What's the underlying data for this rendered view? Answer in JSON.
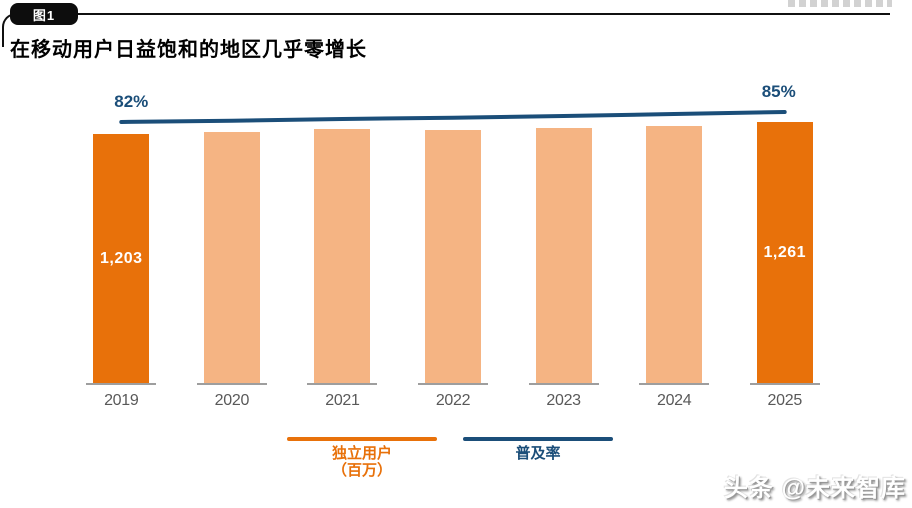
{
  "header": {
    "badge": "图1",
    "title": "在移动用户日益饱和的地区几乎零增长"
  },
  "watermark": "头条 @未来智库",
  "colors": {
    "bar_highlight": "#E8710A",
    "bar_normal": "#F5B483",
    "line": "#1B4E79",
    "bar_value_text": "#FFFFFF",
    "axis_text": "#595959",
    "axis_line": "#9E9E9E",
    "title_text": "#000000",
    "badge_bg": "#0D0D0D"
  },
  "chart_data": {
    "type": "bar",
    "title": "在移动用户日益饱和的地区几乎零增长",
    "categories": [
      "2019",
      "2020",
      "2021",
      "2022",
      "2023",
      "2024",
      "2025"
    ],
    "series": [
      {
        "name": "独立用户（百万）",
        "type": "bar",
        "values": [
          1203,
          1213,
          1226,
          1222,
          1232,
          1243,
          1261
        ],
        "data_labels": [
          "1,203",
          null,
          null,
          null,
          null,
          null,
          "1,261"
        ],
        "highlighted_categories": [
          "2019",
          "2025"
        ]
      },
      {
        "name": "普及率",
        "type": "line",
        "unit": "%",
        "values": [
          82,
          82.4,
          82.9,
          83.3,
          83.8,
          84.4,
          85
        ],
        "data_labels": [
          "82%",
          null,
          null,
          null,
          null,
          null,
          "85%"
        ]
      }
    ],
    "ylim_bar": [
      0,
      1320
    ],
    "ylim_line": [
      82,
      85
    ],
    "grid": false,
    "legend": {
      "position": "bottom",
      "items": [
        {
          "line1": "独立用户",
          "line2": "（百万）"
        },
        {
          "line1": "普及率",
          "line2": ""
        }
      ]
    }
  }
}
